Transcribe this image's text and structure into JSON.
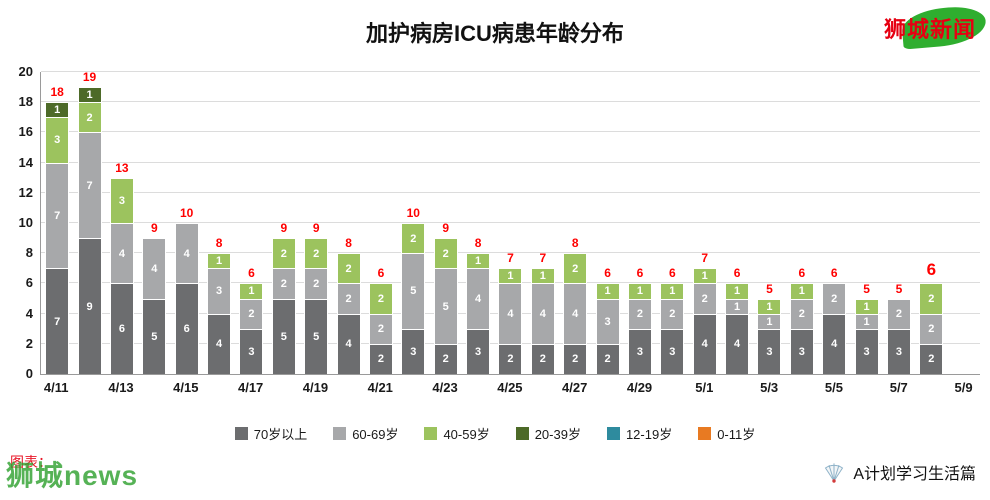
{
  "title": "加护病房ICU病患年龄分布",
  "logo_text": "狮城新闻",
  "watermarks": {
    "bottom_left_red": "图表：",
    "bottom_left_green": "狮城news",
    "bottom_right": "A计划学习生活篇"
  },
  "chart_data": {
    "type": "bar",
    "stacked": true,
    "title": "加护病房ICU病患年龄分布",
    "ylim": [
      0,
      20
    ],
    "y_ticks": [
      0,
      2,
      4,
      6,
      8,
      10,
      12,
      14,
      16,
      18,
      20
    ],
    "x_tick_labels": [
      "4/11",
      "4/13",
      "4/15",
      "4/17",
      "4/19",
      "4/21",
      "4/23",
      "4/25",
      "4/27",
      "4/29",
      "5/1",
      "5/3",
      "5/5",
      "5/7",
      "5/9"
    ],
    "totals": [
      18,
      19,
      13,
      9,
      10,
      8,
      6,
      9,
      9,
      8,
      6,
      10,
      9,
      8,
      7,
      7,
      8,
      6,
      6,
      6,
      7,
      6,
      5,
      6,
      6,
      5,
      5,
      6
    ],
    "last_total_emphasis": true,
    "grid": true,
    "legend_position": "bottom",
    "series": [
      {
        "name": "70岁以上",
        "color": "#6c6d6f",
        "values": [
          7,
          9,
          6,
          5,
          6,
          4,
          3,
          5,
          5,
          4,
          2,
          3,
          2,
          3,
          2,
          2,
          2,
          2,
          3,
          3,
          4,
          4,
          3,
          3,
          4,
          3,
          3,
          2
        ]
      },
      {
        "name": "60-69岁",
        "color": "#a7a8aa",
        "values": [
          7,
          7,
          4,
          4,
          4,
          3,
          2,
          2,
          2,
          2,
          2,
          5,
          5,
          4,
          4,
          4,
          4,
          3,
          2,
          2,
          2,
          1,
          1,
          2,
          2,
          1,
          2,
          2
        ]
      },
      {
        "name": "40-59岁",
        "color": "#9cc35e",
        "values": [
          3,
          2,
          3,
          0,
          0,
          1,
          1,
          2,
          2,
          2,
          2,
          2,
          2,
          1,
          1,
          1,
          2,
          1,
          1,
          1,
          1,
          1,
          1,
          1,
          0,
          1,
          0,
          2
        ]
      },
      {
        "name": "20-39岁",
        "color": "#4d6a28",
        "values": [
          1,
          1,
          0,
          0,
          0,
          0,
          0,
          0,
          0,
          0,
          0,
          0,
          0,
          0,
          0,
          0,
          0,
          0,
          0,
          0,
          0,
          0,
          0,
          0,
          0,
          0,
          0,
          0
        ]
      },
      {
        "name": "12-19岁",
        "color": "#2e8b9e",
        "values": [
          0,
          0,
          0,
          0,
          0,
          0,
          0,
          0,
          0,
          0,
          0,
          0,
          0,
          0,
          0,
          0,
          0,
          0,
          0,
          0,
          0,
          0,
          0,
          0,
          0,
          0,
          0,
          0
        ]
      },
      {
        "name": "0-11岁",
        "color": "#e87a22",
        "values": [
          0,
          0,
          0,
          0,
          0,
          0,
          0,
          0,
          0,
          0,
          0,
          0,
          0,
          0,
          0,
          0,
          0,
          0,
          0,
          0,
          0,
          0,
          0,
          0,
          0,
          0,
          0,
          0
        ]
      }
    ]
  }
}
